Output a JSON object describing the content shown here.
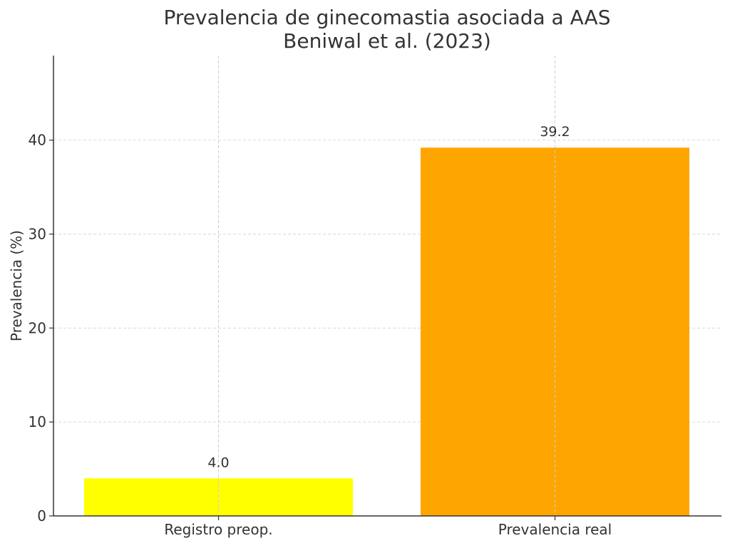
{
  "chart_data": {
    "type": "bar",
    "title_lines": [
      "Prevalencia de ginecomastia asociada a AAS",
      "Beniwal et al. (2023)"
    ],
    "xlabel": "",
    "ylabel": "Prevalencia (%)",
    "categories": [
      "Registro preop.",
      "Prevalencia real"
    ],
    "values": [
      4.0,
      39.2
    ],
    "value_labels": [
      "4.0",
      "39.2"
    ],
    "colors": [
      "#ffff00",
      "#ffa500"
    ],
    "ylim": [
      0,
      49
    ],
    "yticks": [
      0,
      10,
      20,
      30,
      40
    ],
    "grid": true,
    "legend": false
  }
}
